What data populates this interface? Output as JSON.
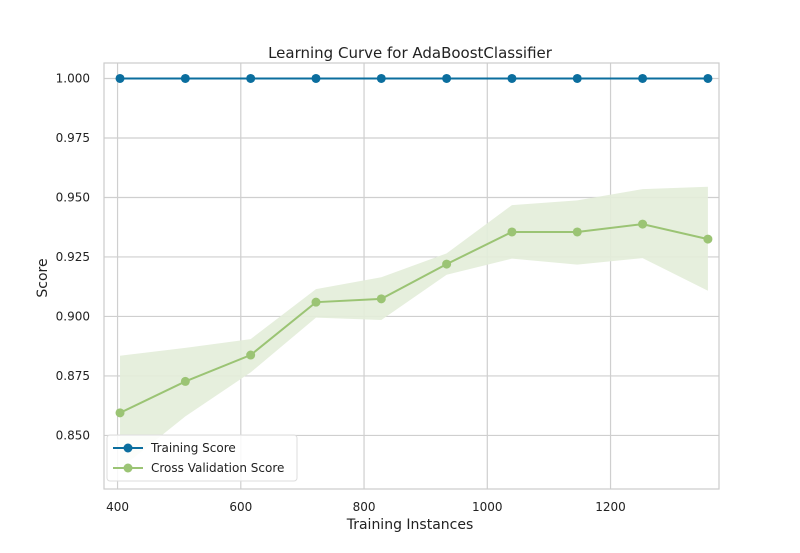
{
  "chart_data": {
    "type": "line",
    "title": "Learning Curve for AdaBoostClassifier",
    "xlabel": "Training Instances",
    "ylabel": "Score",
    "xlim": [
      378,
      1376
    ],
    "ylim": [
      0.8275,
      1.0065
    ],
    "x_ticks": [
      400,
      600,
      800,
      1000,
      1200
    ],
    "x_tick_labels": [
      "400",
      "600",
      "800",
      "1000",
      "1200"
    ],
    "y_ticks": [
      0.85,
      0.875,
      0.9,
      0.925,
      0.95,
      0.975,
      1.0
    ],
    "y_tick_labels": [
      "0.850",
      "0.875",
      "0.900",
      "0.925",
      "0.950",
      "0.975",
      "1.000"
    ],
    "grid": true,
    "legend_position": "lower-left",
    "x": [
      404,
      510,
      616,
      722,
      828,
      934,
      1040,
      1146,
      1252,
      1358
    ],
    "series": [
      {
        "name": "Training Score",
        "color": "#0b6e9e",
        "marker": "circle",
        "values": [
          1.0,
          1.0,
          1.0,
          1.0,
          1.0,
          1.0,
          1.0,
          1.0,
          1.0,
          1.0
        ],
        "band_lower": [
          1.0,
          1.0,
          1.0,
          1.0,
          1.0,
          1.0,
          1.0,
          1.0,
          1.0,
          1.0
        ],
        "band_upper": [
          1.0,
          1.0,
          1.0,
          1.0,
          1.0,
          1.0,
          1.0,
          1.0,
          1.0,
          1.0
        ]
      },
      {
        "name": "Cross Validation Score",
        "color": "#9bc474",
        "band_color": "#e3edd9",
        "marker": "circle",
        "values": [
          0.8595,
          0.8727,
          0.8838,
          0.906,
          0.9074,
          0.922,
          0.9355,
          0.9355,
          0.9388,
          0.9325
        ],
        "band_lower": [
          0.836,
          0.858,
          0.8765,
          0.8995,
          0.8985,
          0.9175,
          0.9243,
          0.9218,
          0.9245,
          0.9108
        ],
        "band_upper": [
          0.8835,
          0.8868,
          0.8905,
          0.9115,
          0.9165,
          0.9265,
          0.9468,
          0.9488,
          0.9535,
          0.9545
        ]
      }
    ]
  }
}
